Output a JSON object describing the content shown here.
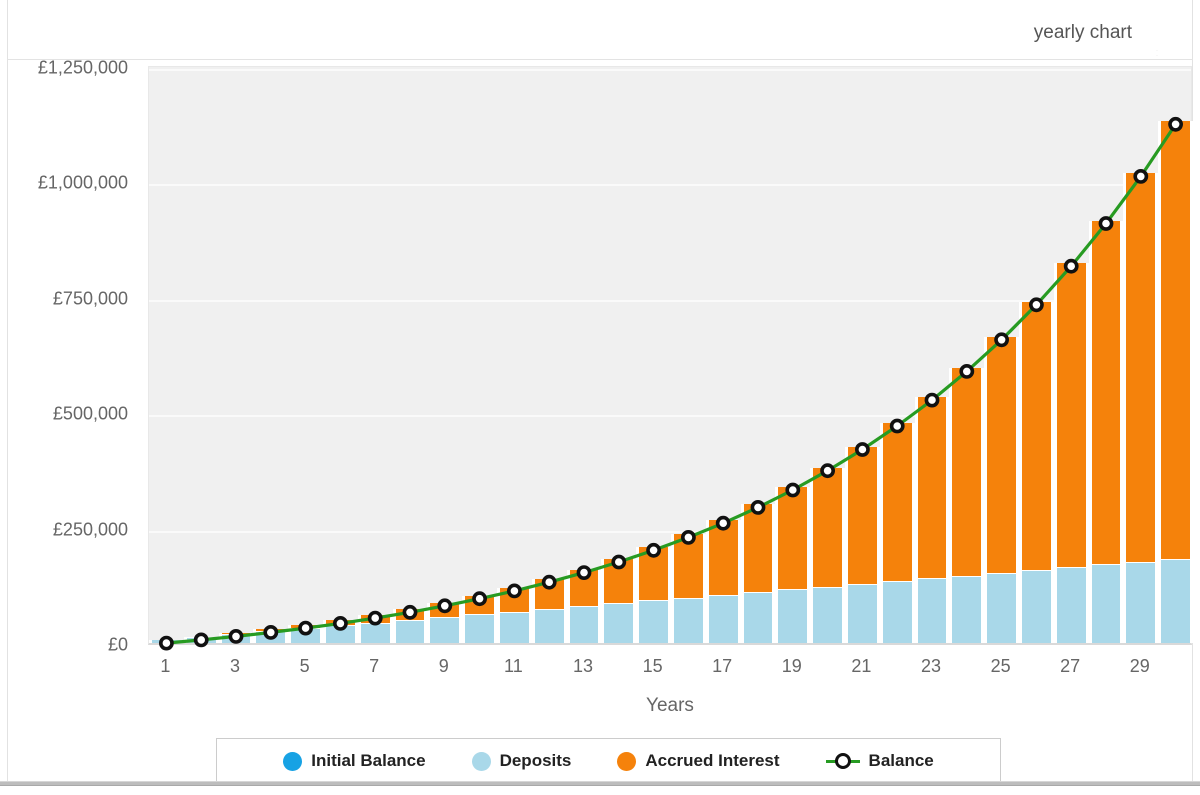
{
  "header": {
    "view_label": "yearly chart",
    "menu_icon": "hamburger-icon"
  },
  "colors": {
    "initial_balance": "#17a2e4",
    "deposits": "#a9d8e9",
    "accrued_interest": "#f5820b",
    "balance_line": "#279b22",
    "marker_ring": "#111111",
    "marker_fill": "#ffffff",
    "plot_background": "#f0f0f0",
    "axis_text": "#666666"
  },
  "chart_data": {
    "type": "bar",
    "subtype": "stacked-columns-with-line",
    "title": "",
    "xlabel": "Years",
    "ylabel": "",
    "ylim": [
      0,
      1250000
    ],
    "grid": true,
    "legend_position": "bottom",
    "currency": "£",
    "categories": [
      1,
      2,
      3,
      4,
      5,
      6,
      7,
      8,
      9,
      10,
      11,
      12,
      13,
      14,
      15,
      16,
      17,
      18,
      19,
      20,
      21,
      22,
      23,
      24,
      25,
      26,
      27,
      28,
      29,
      30
    ],
    "x_tick_labels": [
      "1",
      "3",
      "5",
      "7",
      "9",
      "11",
      "13",
      "15",
      "17",
      "19",
      "21",
      "23",
      "25",
      "27",
      "29"
    ],
    "y_ticks": [
      {
        "value": 0,
        "label": "£0"
      },
      {
        "value": 250000,
        "label": "£250,000"
      },
      {
        "value": 500000,
        "label": "£500,000"
      },
      {
        "value": 750000,
        "label": "£750,000"
      },
      {
        "value": 1000000,
        "label": "£1,000,000"
      },
      {
        "value": 1250000,
        "label": "£1,250,000"
      }
    ],
    "series": [
      {
        "name": "Initial Balance",
        "type": "bar",
        "color": "#17a2e4",
        "values": [
          0,
          0,
          0,
          0,
          0,
          0,
          0,
          0,
          0,
          0,
          0,
          0,
          0,
          0,
          0,
          0,
          0,
          0,
          0,
          0,
          0,
          0,
          0,
          0,
          0,
          0,
          0,
          0,
          0,
          0
        ]
      },
      {
        "name": "Deposits",
        "type": "bar",
        "color": "#a9d8e9",
        "values": [
          6000,
          12000,
          18000,
          24000,
          30000,
          36000,
          42000,
          48000,
          54000,
          60000,
          66000,
          72000,
          78000,
          84000,
          90000,
          96000,
          102000,
          108000,
          114000,
          120000,
          126000,
          132000,
          138000,
          144000,
          150000,
          156000,
          162000,
          168000,
          174000,
          180000
        ]
      },
      {
        "name": "Accrued Interest",
        "type": "bar",
        "color": "#f5820b",
        "values": [
          283,
          1223,
          2891,
          5361,
          8719,
          13056,
          18475,
          25091,
          33027,
          42422,
          53430,
          66219,
          80975,
          97904,
          117235,
          139219,
          164133,
          192284,
          224012,
          259684,
          299720,
          344576,
          394758,
          450824,
          513389,
          583132,
          660806,
          747241,
          843355,
          950162
        ]
      },
      {
        "name": "Balance",
        "type": "line",
        "color": "#279b22",
        "marker": "circle-black-ring-white-fill",
        "values": [
          6283,
          13223,
          20891,
          29361,
          38719,
          49056,
          60475,
          73091,
          87027,
          102422,
          119430,
          138219,
          158975,
          181904,
          207235,
          235219,
          266133,
          300284,
          338012,
          379684,
          425720,
          476576,
          532758,
          594824,
          663389,
          739132,
          822806,
          915241,
          1017355,
          1130162
        ]
      }
    ]
  }
}
